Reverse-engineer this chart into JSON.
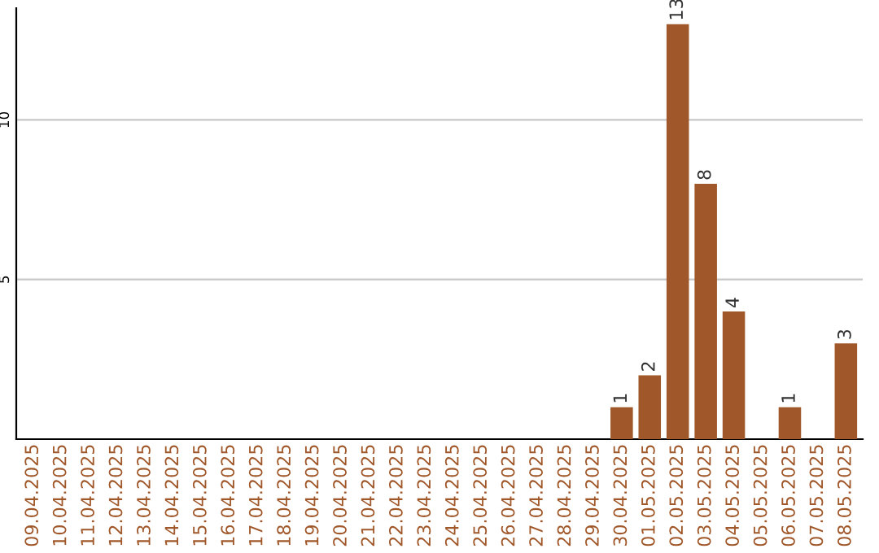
{
  "chart_data": {
    "type": "bar",
    "categories": [
      "09.04.2025",
      "10.04.2025",
      "11.04.2025",
      "12.04.2025",
      "13.04.2025",
      "14.04.2025",
      "15.04.2025",
      "16.04.2025",
      "17.04.2025",
      "18.04.2025",
      "19.04.2025",
      "20.04.2025",
      "21.04.2025",
      "22.04.2025",
      "23.04.2025",
      "24.04.2025",
      "25.04.2025",
      "26.04.2025",
      "27.04.2025",
      "28.04.2025",
      "29.04.2025",
      "30.04.2025",
      "01.05.2025",
      "02.05.2025",
      "03.05.2025",
      "04.05.2025",
      "05.05.2025",
      "06.05.2025",
      "07.05.2025",
      "08.05.2025"
    ],
    "values": [
      0,
      0,
      0,
      0,
      0,
      0,
      0,
      0,
      0,
      0,
      0,
      0,
      0,
      0,
      0,
      0,
      0,
      0,
      0,
      0,
      0,
      1,
      2,
      13,
      8,
      4,
      0,
      1,
      0,
      3
    ],
    "value_labels": [
      null,
      null,
      null,
      null,
      null,
      null,
      null,
      null,
      null,
      null,
      null,
      null,
      null,
      null,
      null,
      null,
      null,
      null,
      null,
      null,
      null,
      "1",
      "2",
      "13",
      "8",
      "4",
      null,
      "1",
      null,
      "3"
    ],
    "color": "#a0582a",
    "ylim": [
      0,
      13.5
    ],
    "yticks": [
      5,
      10
    ],
    "grid": "y"
  }
}
